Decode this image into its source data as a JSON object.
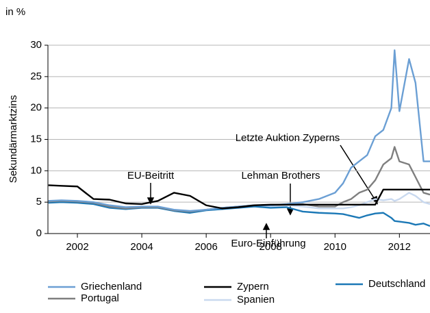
{
  "chart_data": {
    "type": "line",
    "unit_label": "in %",
    "y_label": "Sekundärmarktzins",
    "x": [
      2001.1,
      2001.5,
      2002,
      2002.5,
      2003,
      2003.5,
      2004,
      2004.5,
      2005,
      2005.5,
      2006,
      2006.5,
      2007,
      2007.5,
      2008,
      2008.5,
      2009,
      2009.5,
      2010,
      2010.25,
      2010.5,
      2010.75,
      2011,
      2011.25,
      2011.5,
      2011.75,
      2011.85,
      2012,
      2012.3,
      2012.5,
      2012.75,
      2012.95
    ],
    "series": [
      {
        "name": "Spanien",
        "color": "#c9d9ef",
        "values": [
          5.1,
          5.2,
          5.0,
          4.8,
          4.2,
          4.0,
          4.2,
          4.2,
          3.7,
          3.4,
          3.8,
          4.0,
          4.2,
          4.4,
          4.3,
          4.5,
          4.3,
          4.0,
          4.0,
          4.0,
          4.2,
          4.5,
          5.0,
          5.5,
          5.3,
          5.5,
          5.2,
          5.5,
          6.5,
          6.0,
          5.0,
          4.7
        ]
      },
      {
        "name": "Deutschland",
        "color": "#1b78b6",
        "values": [
          4.9,
          5.0,
          4.9,
          4.7,
          4.1,
          3.9,
          4.1,
          4.1,
          3.6,
          3.3,
          3.7,
          3.9,
          4.1,
          4.3,
          4.1,
          4.2,
          3.5,
          3.3,
          3.2,
          3.1,
          2.8,
          2.5,
          2.9,
          3.2,
          3.3,
          2.5,
          2.0,
          1.9,
          1.7,
          1.4,
          1.6,
          1.2
        ]
      },
      {
        "name": "Portugal",
        "color": "#7f7f7f",
        "values": [
          5.1,
          5.2,
          5.1,
          4.9,
          4.3,
          4.0,
          4.2,
          4.2,
          3.7,
          3.5,
          3.8,
          4.1,
          4.3,
          4.5,
          4.5,
          4.6,
          4.7,
          4.3,
          4.3,
          5.0,
          5.5,
          6.5,
          7.0,
          8.5,
          11,
          12,
          13.8,
          11.5,
          11,
          9,
          6.5,
          6.2
        ]
      },
      {
        "name": "Griechenland",
        "color": "#6b9fd4",
        "values": [
          5.2,
          5.3,
          5.2,
          5.0,
          4.5,
          4.2,
          4.3,
          4.3,
          3.8,
          3.6,
          3.8,
          4.1,
          4.3,
          4.5,
          4.5,
          4.7,
          5.0,
          5.5,
          6.5,
          8,
          10.5,
          11.5,
          12.5,
          15.5,
          16.5,
          20,
          29.2,
          19.5,
          27.8,
          24,
          11.5,
          11.5
        ]
      },
      {
        "name": "Zypern",
        "color": "#000000",
        "values": [
          7.7,
          7.6,
          7.5,
          5.5,
          5.4,
          4.8,
          4.7,
          5.2,
          6.5,
          6.0,
          4.5,
          4.0,
          4.2,
          4.5,
          4.6,
          4.6,
          4.6,
          4.6,
          4.6,
          4.6,
          4.6,
          4.6,
          4.6,
          4.6,
          7.0,
          7.0,
          7.0,
          7.0,
          7.0,
          7.0,
          7.0,
          7.0
        ]
      }
    ],
    "annotations": [
      "Letzte Auktion Zyperns",
      "EU-Beitritt",
      "Lehman Brothers",
      "Euro-Einführung"
    ],
    "xlim": [
      2001,
      2012.95
    ],
    "xticks": [
      2002,
      2004,
      2006,
      2008,
      2010,
      2012
    ],
    "ylim": [
      0,
      30
    ],
    "yticks": [
      0,
      5,
      10,
      15,
      20,
      25,
      30
    ],
    "grid": true
  }
}
